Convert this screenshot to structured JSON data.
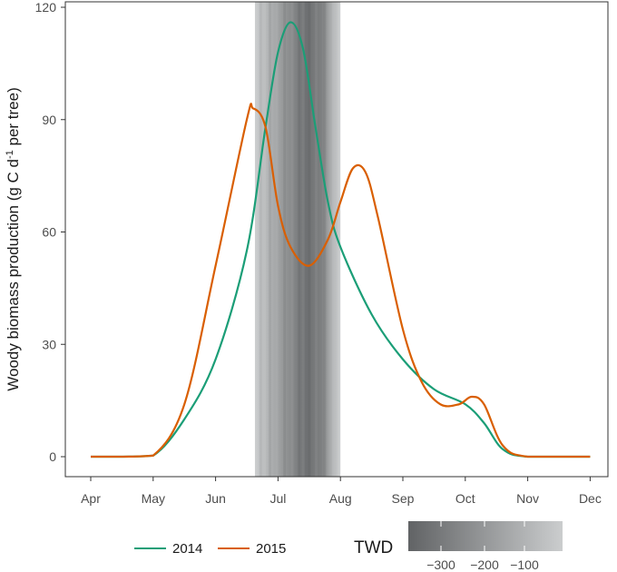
{
  "chart_data": {
    "type": "line",
    "ylabel_main": "Woody biomass production (g C d",
    "ylabel_sup1": "-1",
    "ylabel_mid": " per tree)",
    "ylim": [
      0,
      120
    ],
    "yticks": [
      0,
      30,
      60,
      90,
      120
    ],
    "xticks": [
      "Apr",
      "May",
      "Jun",
      "Jul",
      "Aug",
      "Sep",
      "Oct",
      "Nov",
      "Dec"
    ],
    "grid": false,
    "drought_band": {
      "start": "Jun 20",
      "end": "Aug 1",
      "color_light": "#c8cacc",
      "color_dark": "#5f6163"
    },
    "series": [
      {
        "name": "2014",
        "color": "#1b9e77",
        "points": [
          [
            0,
            0
          ],
          [
            0.5,
            0
          ],
          [
            1.0,
            0.3
          ],
          [
            1.5,
            10
          ],
          [
            2.0,
            26
          ],
          [
            2.5,
            55
          ],
          [
            2.8,
            88
          ],
          [
            3.0,
            108
          ],
          [
            3.2,
            116
          ],
          [
            3.4,
            109
          ],
          [
            3.6,
            88
          ],
          [
            3.8,
            68
          ],
          [
            4.0,
            56
          ],
          [
            4.5,
            38
          ],
          [
            5.0,
            26
          ],
          [
            5.5,
            18
          ],
          [
            6.0,
            14
          ],
          [
            6.3,
            9
          ],
          [
            6.6,
            2
          ],
          [
            7.0,
            0
          ],
          [
            8.0,
            0
          ]
        ]
      },
      {
        "name": "2015",
        "color": "#d95f02",
        "points": [
          [
            0,
            0
          ],
          [
            0.5,
            0
          ],
          [
            1.0,
            0.3
          ],
          [
            1.5,
            14
          ],
          [
            2.0,
            51
          ],
          [
            2.5,
            90
          ],
          [
            2.6,
            93
          ],
          [
            2.8,
            88
          ],
          [
            3.0,
            67
          ],
          [
            3.2,
            56
          ],
          [
            3.5,
            51
          ],
          [
            3.8,
            58
          ],
          [
            4.0,
            68
          ],
          [
            4.2,
            77
          ],
          [
            4.4,
            76
          ],
          [
            4.6,
            64
          ],
          [
            5.0,
            34
          ],
          [
            5.3,
            20
          ],
          [
            5.6,
            14
          ],
          [
            5.9,
            14
          ],
          [
            6.1,
            16
          ],
          [
            6.3,
            14
          ],
          [
            6.6,
            3
          ],
          [
            7.0,
            0
          ],
          [
            8.0,
            0
          ]
        ]
      }
    ],
    "legend": {
      "placement": "bottom"
    }
  },
  "twd_legend": {
    "title": "TWD",
    "tick_labels": [
      "−300",
      "−200",
      "−100"
    ]
  }
}
